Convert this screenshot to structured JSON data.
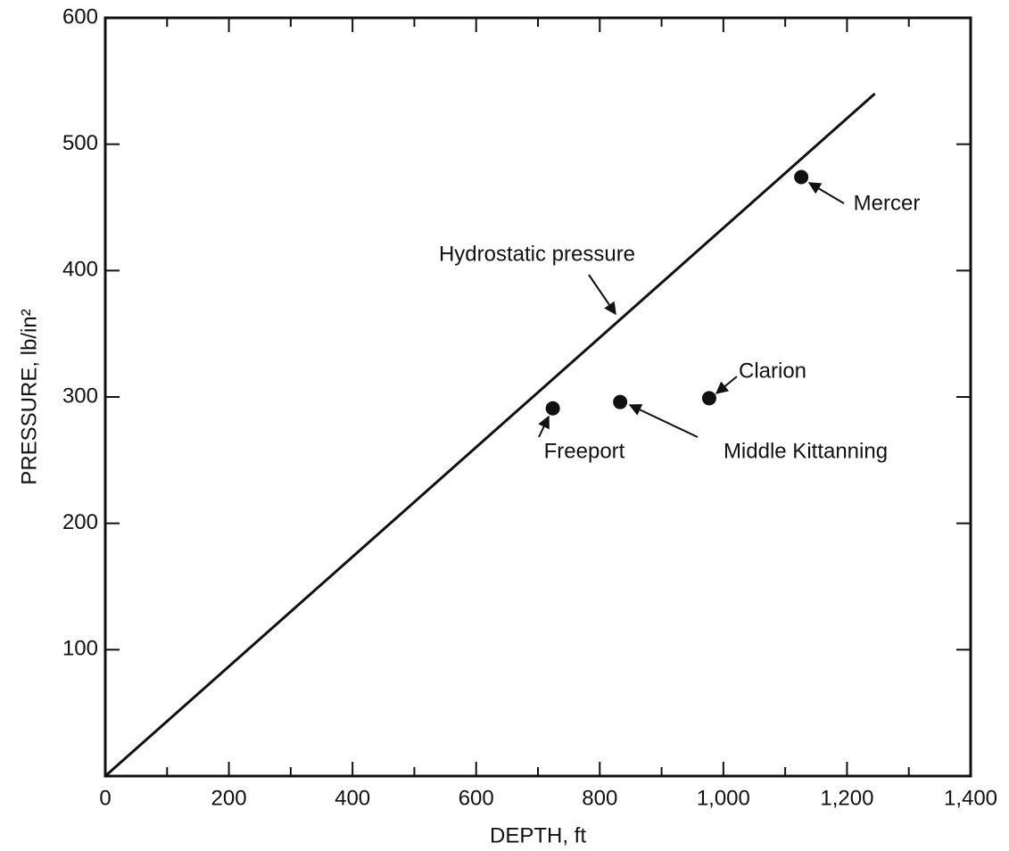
{
  "chart_data": {
    "type": "scatter",
    "xlabel": "DEPTH, ft",
    "ylabel": "PRESSURE, lb/in²",
    "xlim": [
      0,
      1400
    ],
    "ylim": [
      0,
      600
    ],
    "xticks": [
      0,
      200,
      400,
      600,
      800,
      {
        "value": 1000,
        "label": "1,000"
      },
      {
        "value": 1200,
        "label": "1,200"
      },
      {
        "value": 1400,
        "label": "1,400"
      }
    ],
    "xminorticks": [
      100,
      300,
      500,
      700,
      900,
      1100,
      1300
    ],
    "yticks": [
      100,
      200,
      300,
      400,
      500,
      600
    ],
    "color": "#111111",
    "series": [
      {
        "name": "Hydrostatic pressure",
        "type": "line",
        "x": [
          0,
          1245
        ],
        "values": [
          0,
          540
        ]
      },
      {
        "type": "scatter",
        "x": [
          724,
          833,
          977,
          1126
        ],
        "values": [
          291,
          296,
          299,
          474
        ],
        "labels": [
          "Freeport",
          "Middle Kittanning",
          "Clarion",
          "Mercer"
        ]
      }
    ]
  }
}
